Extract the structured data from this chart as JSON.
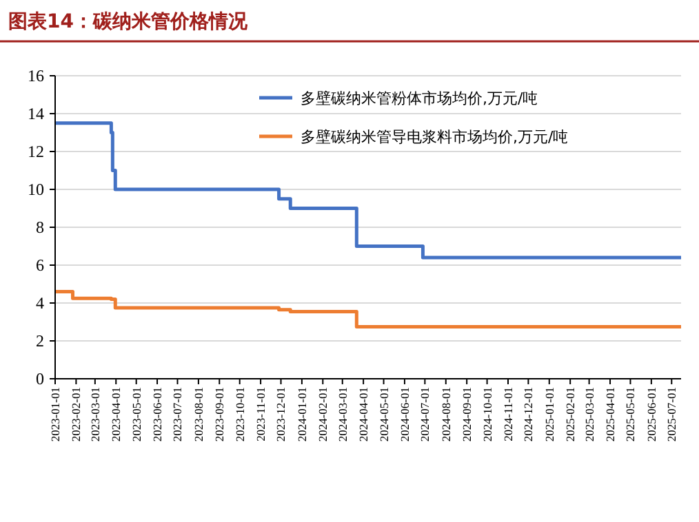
{
  "chart_data": {
    "type": "step",
    "title": "图表14：碳纳米管价格情况",
    "xlim": [
      "2023-01-01",
      "2025-07-15"
    ],
    "xticks": [
      "2023-01-01",
      "2023-02-01",
      "2023-03-01",
      "2023-04-01",
      "2023-05-01",
      "2023-06-01",
      "2023-07-01",
      "2023-08-01",
      "2023-09-01",
      "2023-10-01",
      "2023-11-01",
      "2023-12-01",
      "2024-01-01",
      "2024-02-01",
      "2024-03-01",
      "2024-04-01",
      "2024-05-01",
      "2024-06-01",
      "2024-07-01",
      "2024-08-01",
      "2024-09-01",
      "2024-10-01",
      "2024-11-01",
      "2024-12-01",
      "2025-01-01",
      "2025-02-01",
      "2025-03-01",
      "2025-04-01",
      "2025-05-01",
      "2025-06-01",
      "2025-07-01"
    ],
    "ylim": [
      0,
      16
    ],
    "yticks": [
      0,
      2,
      4,
      6,
      8,
      10,
      12,
      14,
      16
    ],
    "grid": "y",
    "legend": "top right",
    "line_style": "solid",
    "marker": "none",
    "series": [
      {
        "name": "多壁碳纳米管粉体市场均价,万元/吨",
        "color": "#4472c4",
        "x": [
          "2023-01-01",
          "2023-03-25",
          "2023-03-27",
          "2023-03-31",
          "2023-11-28",
          "2023-12-15",
          "2024-03-22",
          "2024-06-28",
          "2025-07-15"
        ],
        "values": [
          13.5,
          13,
          11,
          10,
          9.5,
          9,
          7,
          6.4,
          6.4
        ]
      },
      {
        "name": "多壁碳纳米管导电浆料市场均价,万元/吨",
        "color": "#ed7d31",
        "x": [
          "2023-01-01",
          "2023-01-27",
          "2023-03-25",
          "2023-03-31",
          "2023-11-28",
          "2023-12-15",
          "2024-03-22",
          "2025-07-15"
        ],
        "values": [
          4.6,
          4.25,
          4.2,
          3.75,
          3.65,
          3.55,
          2.75,
          2.75
        ]
      }
    ]
  }
}
